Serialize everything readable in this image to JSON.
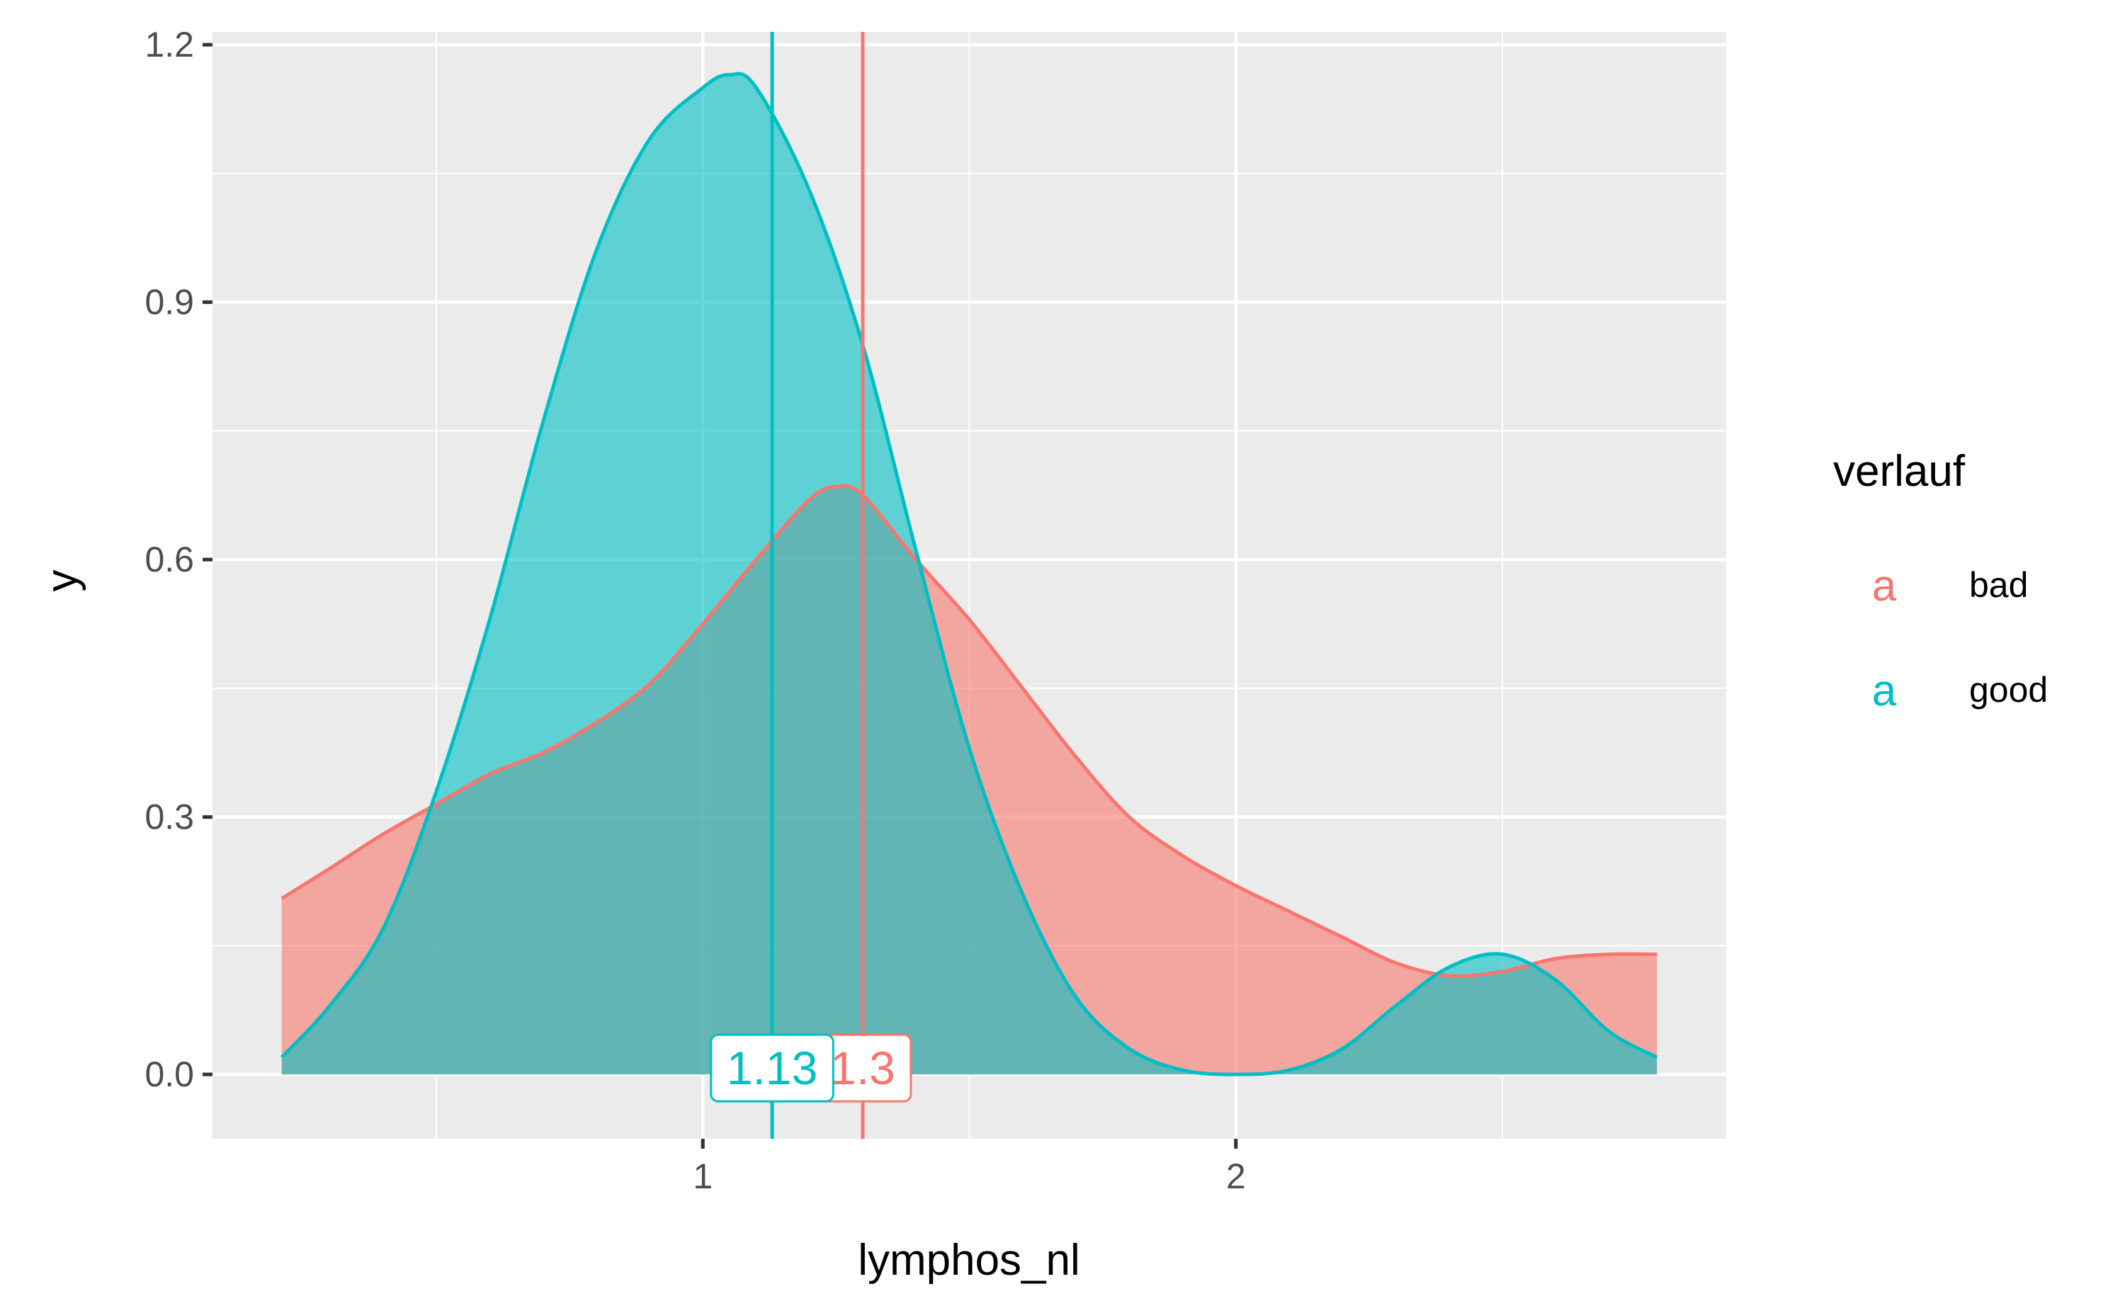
{
  "chart_data": {
    "type": "area",
    "title": "",
    "xlabel": "lymphos_nl",
    "ylabel": "y",
    "xlim": [
      0.08,
      2.92
    ],
    "ylim": [
      -0.075,
      1.215
    ],
    "x_ticks": [
      1,
      2
    ],
    "x_tick_labels": [
      "1",
      "2"
    ],
    "y_ticks": [
      0.0,
      0.3,
      0.6,
      0.9,
      1.2
    ],
    "y_tick_labels": [
      "0.0",
      "0.3",
      "0.6",
      "0.9",
      "1.2"
    ],
    "x_minor_ticks": [
      0.5,
      1.5,
      2.5
    ],
    "y_minor_ticks": [
      0.15,
      0.45,
      0.75,
      1.05
    ],
    "grid": true,
    "legend": {
      "title": "verlauf",
      "position": "right",
      "key_glyph": "a"
    },
    "series": [
      {
        "name": "bad",
        "color": "#F8766D",
        "fill_opacity": 0.6,
        "points": [
          [
            0.21,
            0.205
          ],
          [
            0.3,
            0.24
          ],
          [
            0.4,
            0.28
          ],
          [
            0.5,
            0.315
          ],
          [
            0.6,
            0.35
          ],
          [
            0.7,
            0.375
          ],
          [
            0.8,
            0.41
          ],
          [
            0.9,
            0.455
          ],
          [
            1.0,
            0.525
          ],
          [
            1.1,
            0.6
          ],
          [
            1.2,
            0.67
          ],
          [
            1.25,
            0.685
          ],
          [
            1.3,
            0.675
          ],
          [
            1.4,
            0.6
          ],
          [
            1.5,
            0.53
          ],
          [
            1.6,
            0.45
          ],
          [
            1.7,
            0.37
          ],
          [
            1.8,
            0.3
          ],
          [
            1.9,
            0.255
          ],
          [
            2.0,
            0.22
          ],
          [
            2.1,
            0.19
          ],
          [
            2.2,
            0.16
          ],
          [
            2.3,
            0.13
          ],
          [
            2.4,
            0.115
          ],
          [
            2.5,
            0.12
          ],
          [
            2.6,
            0.135
          ],
          [
            2.7,
            0.14
          ],
          [
            2.79,
            0.14
          ]
        ],
        "mean": 1.3,
        "mean_label": "1.3"
      },
      {
        "name": "good",
        "color": "#00BFC4",
        "fill_opacity": 0.6,
        "points": [
          [
            0.21,
            0.02
          ],
          [
            0.3,
            0.08
          ],
          [
            0.4,
            0.17
          ],
          [
            0.5,
            0.33
          ],
          [
            0.6,
            0.53
          ],
          [
            0.7,
            0.76
          ],
          [
            0.8,
            0.96
          ],
          [
            0.9,
            1.09
          ],
          [
            1.0,
            1.15
          ],
          [
            1.05,
            1.165
          ],
          [
            1.1,
            1.15
          ],
          [
            1.2,
            1.03
          ],
          [
            1.3,
            0.85
          ],
          [
            1.4,
            0.61
          ],
          [
            1.5,
            0.38
          ],
          [
            1.6,
            0.21
          ],
          [
            1.7,
            0.09
          ],
          [
            1.8,
            0.03
          ],
          [
            1.9,
            0.005
          ],
          [
            2.0,
            0.0
          ],
          [
            2.1,
            0.005
          ],
          [
            2.2,
            0.03
          ],
          [
            2.3,
            0.08
          ],
          [
            2.4,
            0.125
          ],
          [
            2.5,
            0.14
          ],
          [
            2.6,
            0.11
          ],
          [
            2.7,
            0.05
          ],
          [
            2.79,
            0.02
          ]
        ],
        "mean": 1.13,
        "mean_label": "1.13"
      }
    ]
  }
}
